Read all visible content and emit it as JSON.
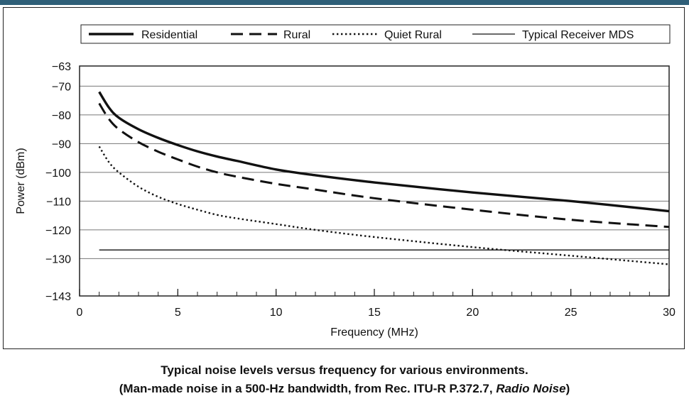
{
  "chart_data": {
    "type": "line",
    "xlabel": "Frequency (MHz)",
    "ylabel": "Power (dBm)",
    "xlim": [
      0,
      30
    ],
    "ylim": [
      -143,
      -63
    ],
    "x_ticks": [
      0,
      5,
      10,
      15,
      20,
      25,
      30
    ],
    "y_ticks": [
      -63,
      -70,
      -80,
      -90,
      -100,
      -110,
      -120,
      -130,
      -143
    ],
    "y_tick_labels": [
      "−63",
      "−70",
      "−80",
      "−90",
      "−100",
      "−110",
      "−120",
      "−130",
      "−143"
    ],
    "grid": "horizontal",
    "legend_position": "top",
    "series": [
      {
        "name": "Residential",
        "style": "solid-thick",
        "x": [
          1,
          1.5,
          2,
          3,
          4,
          5,
          6,
          7,
          8,
          10,
          12,
          15,
          20,
          25,
          30
        ],
        "y": [
          -72,
          -77.5,
          -81,
          -85,
          -88,
          -90.5,
          -92.7,
          -94.5,
          -96,
          -99,
          -101,
          -103.5,
          -107,
          -110,
          -113.5
        ]
      },
      {
        "name": "Rural",
        "style": "dashed",
        "x": [
          1,
          1.5,
          2,
          3,
          4,
          5,
          6,
          7,
          8,
          10,
          12,
          15,
          20,
          25,
          30
        ],
        "y": [
          -76,
          -81.5,
          -85,
          -89.5,
          -92.8,
          -95.5,
          -98,
          -100,
          -101.5,
          -104,
          -106,
          -109,
          -113,
          -116.5,
          -119
        ]
      },
      {
        "name": "Quiet Rural",
        "style": "dotted",
        "x": [
          1,
          1.5,
          2,
          3,
          4,
          5,
          6,
          7,
          8,
          10,
          12,
          15,
          20,
          25,
          30
        ],
        "y": [
          -91,
          -96.5,
          -100,
          -105,
          -108.5,
          -111,
          -113,
          -114.8,
          -116,
          -118,
          -120,
          -122.5,
          -126,
          -129,
          -132
        ]
      },
      {
        "name": "Typical Receiver MDS",
        "style": "solid-thin",
        "x": [
          1,
          30
        ],
        "y": [
          -127,
          -127
        ]
      }
    ]
  },
  "caption": {
    "line1": "Typical noise levels versus frequency for various environments.",
    "line2_prefix": "(Man-made noise in a 500-Hz bandwidth, from Rec. ITU-R P.372.7, ",
    "line2_italic": "Radio Noise",
    "line2_suffix": ")"
  }
}
